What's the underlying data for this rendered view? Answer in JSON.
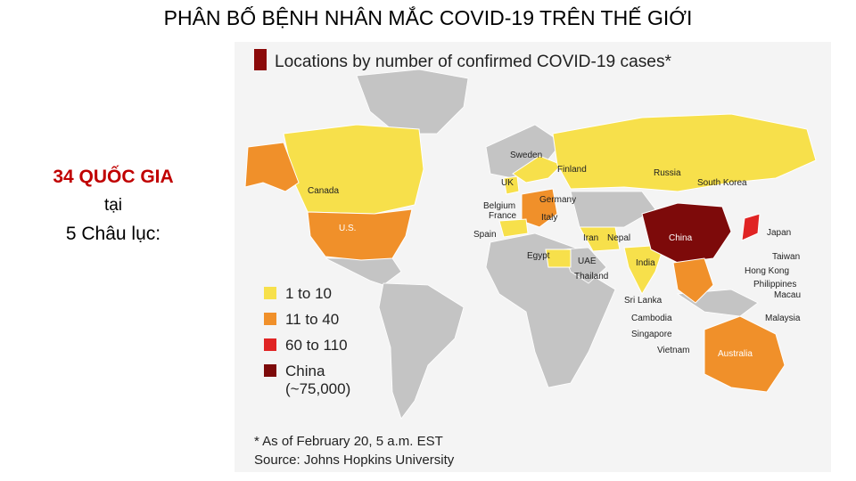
{
  "slide": {
    "title": "PHÂN BỐ BỆNH NHÂN MẮC COVID-19 TRÊN THẾ GIỚI",
    "side_text": [
      "34 QUỐC GIA",
      "tại",
      "5 Châu lục:"
    ]
  },
  "map": {
    "title": "Locations by number of confirmed COVID-19 cases*",
    "labels": [
      "Sweden",
      "Finland",
      "Russia",
      "UK",
      "Canada",
      "Germany",
      "South Korea",
      "Belgium",
      "France",
      "Italy",
      "U.S.",
      "Spain",
      "Iran",
      "Nepal",
      "China",
      "Japan",
      "Egypt",
      "UAE",
      "India",
      "Taiwan",
      "Thailand",
      "Hong Kong",
      "Philippines",
      "Macau",
      "Sri Lanka",
      "Cambodia",
      "Malaysia",
      "Singapore",
      "Vietnam",
      "Australia"
    ],
    "legend": [
      {
        "name": "1 to 10",
        "color": "#f7e04b"
      },
      {
        "name": "11 to 40",
        "color": "#f0902a"
      },
      {
        "name": "60 to 110",
        "color": "#e02424"
      },
      {
        "name": "China",
        "note": "(~75,000)",
        "color": "#7d0a0a"
      }
    ],
    "footnote": [
      "* As of February 20, 5 a.m. EST",
      "Source: Johns Hopkins University"
    ]
  }
}
